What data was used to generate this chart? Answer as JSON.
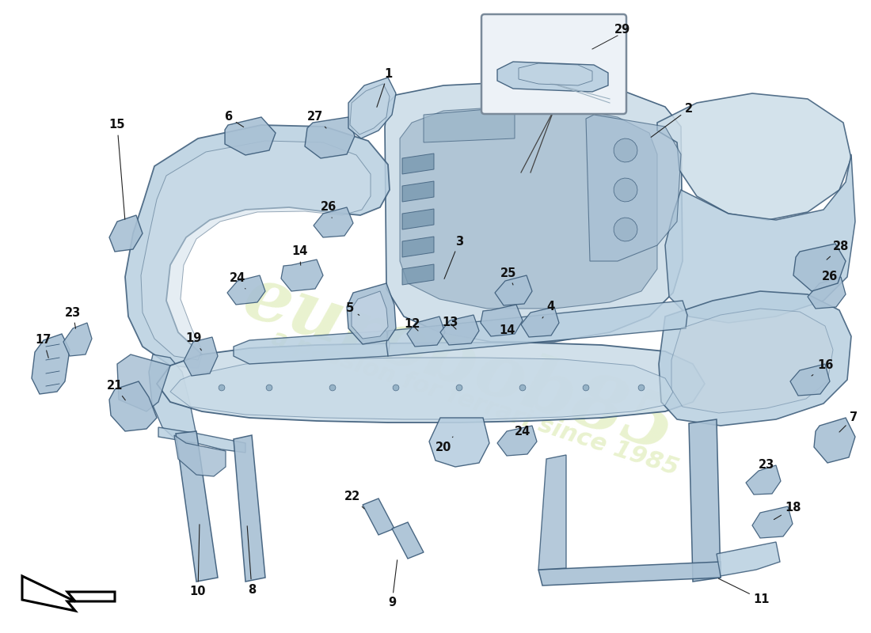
{
  "background_color": "#ffffff",
  "part_fill": "#b8cfe0",
  "part_fill_light": "#ccdde8",
  "part_fill_dark": "#8aaabf",
  "part_fill_mid": "#a8c0d4",
  "edge_color": "#3a5a78",
  "edge_color_light": "#5a7a98",
  "label_color": "#111111",
  "label_fontsize": 10.5,
  "watermark_color": "#d8e8a8",
  "arrow_color": "#111111",
  "inset_bg": "#edf2f7",
  "inset_edge": "#7a8a9a",
  "note_bg": "#ffffff"
}
